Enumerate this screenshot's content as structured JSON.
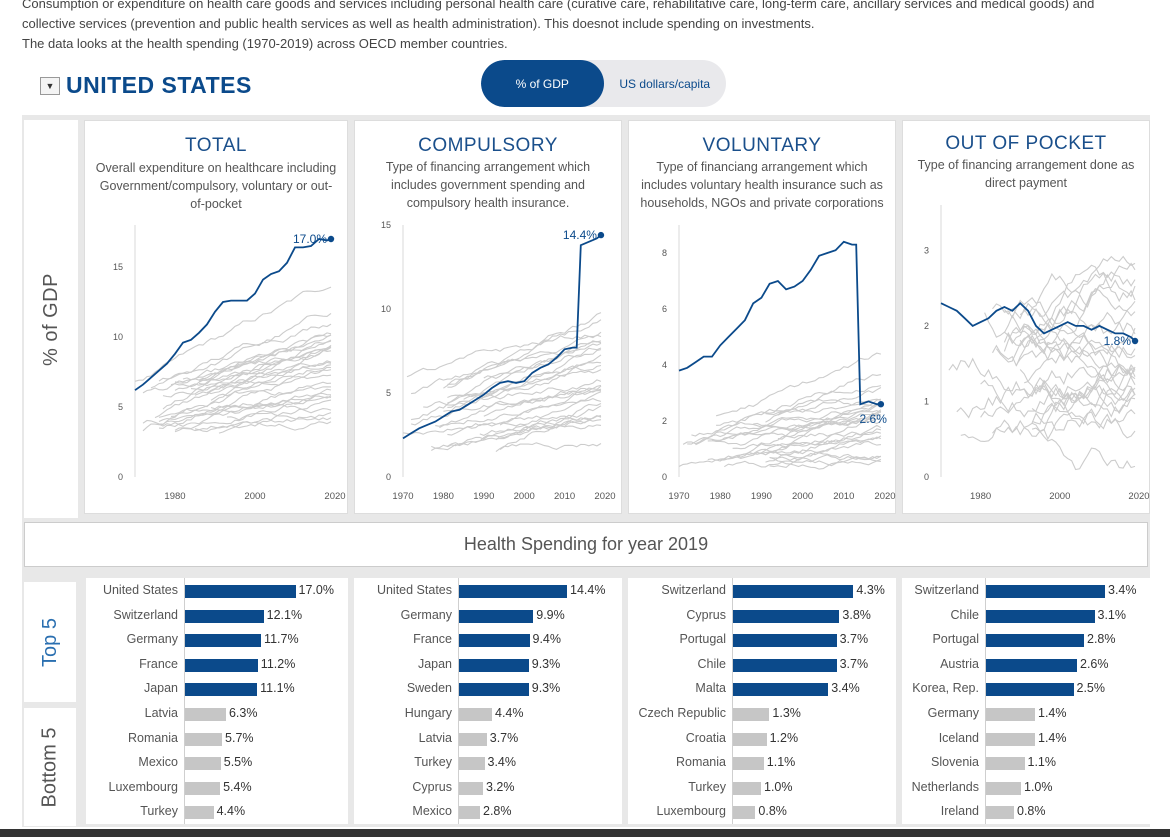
{
  "intro": {
    "line1": "Consumption or expenditure on health care goods and services including personal health care (curative care, rehabilitative care, long-term care, ancillary services and medical goods) and",
    "line2": "collective services (prevention and public health services as well as health administration). This doesnot include spending on investments.",
    "line3": "The data looks at the health spending (1970-2019) across OECD member countries."
  },
  "country": "UNITED STATES",
  "toggle": {
    "option1": "% of GDP",
    "option2": "US dollars/capita",
    "selected": "% of GDP"
  },
  "y_axis_label": "% of GDP",
  "colors": {
    "highlight": "#0b4a8b",
    "others": "#cccccc",
    "bar_bottom": "#c6c6c6"
  },
  "panels": [
    {
      "title": "TOTAL",
      "desc": "Overall expenditure on healthcare including Government/compulsory, voluntary or out-of-pocket"
    },
    {
      "title": "COMPULSORY",
      "desc": "Type of financing arrangement which includes government spending and compulsory health insurance."
    },
    {
      "title": "VOLUNTARY",
      "desc": "Type of financiang arrangement which includes voluntary health insurance such as households, NGOs and private corporations"
    },
    {
      "title": "OUT OF POCKET",
      "desc": "Type of financing arrangement done as direct payment"
    }
  ],
  "year_banner": "Health Spending for year 2019",
  "groups": {
    "top": "Top 5",
    "bottom": "Bottom 5"
  },
  "chart_data": [
    {
      "type": "line",
      "title": "TOTAL",
      "ylim": [
        0,
        18
      ],
      "xlim": [
        1970,
        2020
      ],
      "yticks": [
        "0",
        "5",
        "10",
        "15"
      ],
      "xticks": [
        "1980",
        "2000",
        "2020"
      ],
      "end_label": "17.0%",
      "series": [
        {
          "name": "United States",
          "x": [
            1970,
            1972,
            1974,
            1976,
            1978,
            1980,
            1982,
            1984,
            1986,
            1988,
            1990,
            1992,
            1994,
            1996,
            1998,
            2000,
            2002,
            2004,
            2006,
            2008,
            2010,
            2012,
            2014,
            2016,
            2018,
            2019
          ],
          "y": [
            6.2,
            6.6,
            7.1,
            7.6,
            8.1,
            8.8,
            9.6,
            9.8,
            10.3,
            10.9,
            11.8,
            12.5,
            12.6,
            12.6,
            12.6,
            13.1,
            14.1,
            14.5,
            14.7,
            15.3,
            16.4,
            16.4,
            16.5,
            17.0,
            16.9,
            17.0
          ]
        }
      ]
    },
    {
      "type": "line",
      "title": "COMPULSORY",
      "ylim": [
        0,
        15
      ],
      "xlim": [
        1970,
        2020
      ],
      "yticks": [
        "0",
        "5",
        "10",
        "15"
      ],
      "xticks": [
        "1970",
        "1980",
        "1990",
        "2000",
        "2010",
        "2020"
      ],
      "end_label": "14.4%",
      "series": [
        {
          "name": "United States",
          "x": [
            1970,
            1972,
            1974,
            1976,
            1978,
            1980,
            1982,
            1984,
            1986,
            1988,
            1990,
            1992,
            1994,
            1996,
            1998,
            2000,
            2002,
            2004,
            2006,
            2008,
            2010,
            2012,
            2013,
            2014,
            2016,
            2018,
            2019
          ],
          "y": [
            2.3,
            2.6,
            2.9,
            3.1,
            3.3,
            3.6,
            3.9,
            4.0,
            4.3,
            4.6,
            4.9,
            5.3,
            5.6,
            5.7,
            5.6,
            5.7,
            6.2,
            6.5,
            6.7,
            7.1,
            7.6,
            7.7,
            7.7,
            13.8,
            14.0,
            14.2,
            14.4
          ]
        }
      ]
    },
    {
      "type": "line",
      "title": "VOLUNTARY",
      "ylim": [
        0,
        9
      ],
      "xlim": [
        1970,
        2020
      ],
      "yticks": [
        "0",
        "2",
        "4",
        "6",
        "8"
      ],
      "xticks": [
        "1970",
        "1980",
        "1990",
        "2000",
        "2010",
        "2020"
      ],
      "end_label": "2.6%",
      "series": [
        {
          "name": "United States",
          "x": [
            1970,
            1972,
            1974,
            1976,
            1978,
            1980,
            1982,
            1984,
            1986,
            1988,
            1990,
            1992,
            1994,
            1996,
            1998,
            2000,
            2002,
            2004,
            2006,
            2008,
            2010,
            2012,
            2013,
            2014,
            2016,
            2018,
            2019
          ],
          "y": [
            3.8,
            3.9,
            4.1,
            4.3,
            4.3,
            4.7,
            5.0,
            5.3,
            5.6,
            6.2,
            6.4,
            6.9,
            7.0,
            6.7,
            6.8,
            7.0,
            7.4,
            7.9,
            8.0,
            8.1,
            8.4,
            8.3,
            8.3,
            2.6,
            2.7,
            2.6,
            2.6
          ]
        }
      ]
    },
    {
      "type": "line",
      "title": "OUT OF POCKET",
      "ylim": [
        0,
        3.6
      ],
      "xlim": [
        1970,
        2020
      ],
      "yticks": [
        "0",
        "1",
        "2",
        "3"
      ],
      "xticks": [
        "1980",
        "2000",
        "2020"
      ],
      "end_label": "1.8%",
      "series": [
        {
          "name": "United States",
          "x": [
            1970,
            1972,
            1974,
            1976,
            1978,
            1980,
            1982,
            1984,
            1986,
            1988,
            1990,
            1992,
            1994,
            1996,
            1998,
            2000,
            2002,
            2004,
            2006,
            2008,
            2010,
            2012,
            2014,
            2016,
            2018,
            2019
          ],
          "y": [
            2.3,
            2.25,
            2.2,
            2.1,
            2.0,
            2.05,
            2.1,
            2.2,
            2.25,
            2.2,
            2.3,
            2.2,
            2.0,
            1.9,
            1.95,
            2.0,
            2.05,
            2.0,
            2.0,
            1.95,
            2.0,
            1.95,
            1.9,
            1.9,
            1.85,
            1.8
          ]
        }
      ]
    },
    {
      "type": "bar",
      "title": "TOTAL",
      "top5": [
        {
          "country": "United States",
          "value": 17.0,
          "label": "17.0%"
        },
        {
          "country": "Switzerland",
          "value": 12.1,
          "label": "12.1%"
        },
        {
          "country": "Germany",
          "value": 11.7,
          "label": "11.7%"
        },
        {
          "country": "France",
          "value": 11.2,
          "label": "11.2%"
        },
        {
          "country": "Japan",
          "value": 11.1,
          "label": "11.1%"
        }
      ],
      "bottom5": [
        {
          "country": "Latvia",
          "value": 6.3,
          "label": "6.3%"
        },
        {
          "country": "Romania",
          "value": 5.7,
          "label": "5.7%"
        },
        {
          "country": "Mexico",
          "value": 5.5,
          "label": "5.5%"
        },
        {
          "country": "Luxembourg",
          "value": 5.4,
          "label": "5.4%"
        },
        {
          "country": "Turkey",
          "value": 4.4,
          "label": "4.4%"
        }
      ]
    },
    {
      "type": "bar",
      "title": "COMPULSORY",
      "top5": [
        {
          "country": "United States",
          "value": 14.4,
          "label": "14.4%"
        },
        {
          "country": "Germany",
          "value": 9.9,
          "label": "9.9%"
        },
        {
          "country": "France",
          "value": 9.4,
          "label": "9.4%"
        },
        {
          "country": "Japan",
          "value": 9.3,
          "label": "9.3%"
        },
        {
          "country": "Sweden",
          "value": 9.3,
          "label": "9.3%"
        }
      ],
      "bottom5": [
        {
          "country": "Hungary",
          "value": 4.4,
          "label": "4.4%"
        },
        {
          "country": "Latvia",
          "value": 3.7,
          "label": "3.7%"
        },
        {
          "country": "Turkey",
          "value": 3.4,
          "label": "3.4%"
        },
        {
          "country": "Cyprus",
          "value": 3.2,
          "label": "3.2%"
        },
        {
          "country": "Mexico",
          "value": 2.8,
          "label": "2.8%"
        }
      ]
    },
    {
      "type": "bar",
      "title": "VOLUNTARY",
      "top5": [
        {
          "country": "Switzerland",
          "value": 4.3,
          "label": "4.3%"
        },
        {
          "country": "Cyprus",
          "value": 3.8,
          "label": "3.8%"
        },
        {
          "country": "Portugal",
          "value": 3.7,
          "label": "3.7%"
        },
        {
          "country": "Chile",
          "value": 3.7,
          "label": "3.7%"
        },
        {
          "country": "Malta",
          "value": 3.4,
          "label": "3.4%"
        }
      ],
      "bottom5": [
        {
          "country": "Czech Republic",
          "value": 1.3,
          "label": "1.3%"
        },
        {
          "country": "Croatia",
          "value": 1.2,
          "label": "1.2%"
        },
        {
          "country": "Romania",
          "value": 1.1,
          "label": "1.1%"
        },
        {
          "country": "Turkey",
          "value": 1.0,
          "label": "1.0%"
        },
        {
          "country": "Luxembourg",
          "value": 0.8,
          "label": "0.8%"
        }
      ]
    },
    {
      "type": "bar",
      "title": "OUT OF POCKET",
      "top5": [
        {
          "country": "Switzerland",
          "value": 3.4,
          "label": "3.4%"
        },
        {
          "country": "Chile",
          "value": 3.1,
          "label": "3.1%"
        },
        {
          "country": "Portugal",
          "value": 2.8,
          "label": "2.8%"
        },
        {
          "country": "Austria",
          "value": 2.6,
          "label": "2.6%"
        },
        {
          "country": "Korea, Rep.",
          "value": 2.5,
          "label": "2.5%"
        }
      ],
      "bottom5": [
        {
          "country": "Germany",
          "value": 1.4,
          "label": "1.4%"
        },
        {
          "country": "Iceland",
          "value": 1.4,
          "label": "1.4%"
        },
        {
          "country": "Slovenia",
          "value": 1.1,
          "label": "1.1%"
        },
        {
          "country": "Netherlands",
          "value": 1.0,
          "label": "1.0%"
        },
        {
          "country": "Ireland",
          "value": 0.8,
          "label": "0.8%"
        }
      ]
    }
  ]
}
